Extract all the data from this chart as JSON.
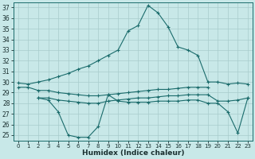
{
  "title": "",
  "xlabel": "Humidex (Indice chaleur)",
  "ylabel": "",
  "bg_color": "#c8e8e8",
  "line_color": "#1a6b6b",
  "grid_color": "#a8cccc",
  "xlim": [
    -0.5,
    23.5
  ],
  "ylim": [
    24.5,
    37.5
  ],
  "yticks": [
    25,
    26,
    27,
    28,
    29,
    30,
    31,
    32,
    33,
    34,
    35,
    36,
    37
  ],
  "xticks": [
    0,
    1,
    2,
    3,
    4,
    5,
    6,
    7,
    8,
    9,
    10,
    11,
    12,
    13,
    14,
    15,
    16,
    17,
    18,
    19,
    20,
    21,
    22,
    23
  ],
  "line1_x": [
    0,
    1,
    2,
    3,
    4,
    5,
    6,
    7,
    8,
    9,
    10,
    11,
    12,
    13,
    14,
    15,
    16,
    17,
    18,
    19,
    20,
    21,
    22,
    23
  ],
  "line1_y": [
    29.9,
    29.8,
    30.0,
    30.2,
    30.5,
    30.8,
    31.2,
    31.5,
    32.0,
    32.5,
    33.0,
    34.8,
    35.3,
    37.2,
    36.5,
    35.2,
    33.3,
    33.0,
    32.5,
    30.0,
    30.0,
    29.8,
    29.9,
    29.8
  ],
  "line2_x": [
    2,
    3,
    4,
    5,
    6,
    7,
    8,
    9,
    10,
    11,
    12,
    13,
    14,
    15,
    16,
    17,
    18,
    19,
    20,
    21,
    22,
    23
  ],
  "line2_y": [
    28.5,
    28.5,
    28.3,
    28.2,
    28.1,
    28.0,
    28.0,
    28.2,
    28.3,
    28.4,
    28.5,
    28.5,
    28.6,
    28.7,
    28.7,
    28.8,
    28.8,
    28.8,
    28.2,
    28.2,
    28.3,
    28.5
  ],
  "line3_x": [
    2,
    3,
    4,
    5,
    6,
    7,
    8,
    9,
    10,
    11,
    12,
    13,
    14,
    15,
    16,
    17,
    18,
    19,
    20,
    21,
    22,
    23
  ],
  "line3_y": [
    28.5,
    28.3,
    27.2,
    25.0,
    24.8,
    24.8,
    25.8,
    28.8,
    28.2,
    28.1,
    28.1,
    28.1,
    28.2,
    28.2,
    28.2,
    28.3,
    28.3,
    28.0,
    28.0,
    27.2,
    25.2,
    28.5
  ],
  "line4_x": [
    0,
    1,
    2,
    3,
    4,
    5,
    6,
    7,
    8,
    9,
    10,
    11,
    12,
    13,
    14,
    15,
    16,
    17,
    18,
    19
  ],
  "line4_y": [
    29.5,
    29.5,
    29.2,
    29.2,
    29.0,
    28.9,
    28.8,
    28.7,
    28.7,
    28.8,
    28.9,
    29.0,
    29.1,
    29.2,
    29.3,
    29.3,
    29.4,
    29.5,
    29.5,
    29.5
  ]
}
